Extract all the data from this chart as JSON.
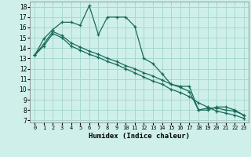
{
  "xlabel": "Humidex (Indice chaleur)",
  "bg_color": "#cff0ea",
  "grid_color": "#a8d8d0",
  "line_color": "#1a6b5a",
  "xlim": [
    -0.5,
    23.5
  ],
  "ylim": [
    6.8,
    18.5
  ],
  "yticks": [
    7,
    8,
    9,
    10,
    11,
    12,
    13,
    14,
    15,
    16,
    17,
    18
  ],
  "xticks": [
    0,
    1,
    2,
    3,
    4,
    5,
    6,
    7,
    8,
    9,
    10,
    11,
    12,
    13,
    14,
    15,
    16,
    17,
    18,
    19,
    20,
    21,
    22,
    23
  ],
  "line1_x": [
    0,
    1,
    2,
    3,
    4,
    5,
    6,
    7,
    8,
    9,
    10,
    11,
    12,
    13,
    14,
    15,
    16,
    17,
    18,
    19,
    20,
    21,
    22,
    23
  ],
  "line1_y": [
    13.3,
    14.9,
    15.8,
    16.5,
    16.5,
    16.2,
    18.1,
    15.3,
    17.0,
    17.0,
    17.0,
    16.1,
    13.0,
    12.5,
    11.5,
    10.5,
    10.3,
    10.3,
    8.0,
    8.0,
    8.3,
    8.3,
    8.0,
    7.5
  ],
  "line2_x": [
    0,
    1,
    2,
    3,
    4,
    5,
    6,
    7,
    8,
    9,
    10,
    11,
    12,
    13,
    14,
    15,
    16,
    17,
    18,
    19,
    20,
    21,
    22,
    23
  ],
  "line2_y": [
    13.3,
    14.4,
    15.6,
    15.2,
    14.5,
    14.1,
    13.7,
    13.4,
    13.0,
    12.7,
    12.3,
    12.0,
    11.6,
    11.3,
    10.9,
    10.5,
    10.2,
    9.8,
    8.0,
    8.2,
    8.2,
    8.0,
    7.9,
    7.5
  ],
  "line3_x": [
    0,
    1,
    2,
    3,
    4,
    5,
    6,
    7,
    8,
    9,
    10,
    11,
    12,
    13,
    14,
    15,
    16,
    17,
    18,
    19,
    20,
    21,
    22,
    23
  ],
  "line3_y": [
    13.3,
    14.2,
    15.4,
    15.0,
    14.2,
    13.8,
    13.4,
    13.1,
    12.7,
    12.4,
    12.0,
    11.6,
    11.2,
    10.8,
    10.5,
    10.0,
    9.7,
    9.3,
    8.7,
    8.3,
    7.9,
    7.7,
    7.5,
    7.2
  ]
}
